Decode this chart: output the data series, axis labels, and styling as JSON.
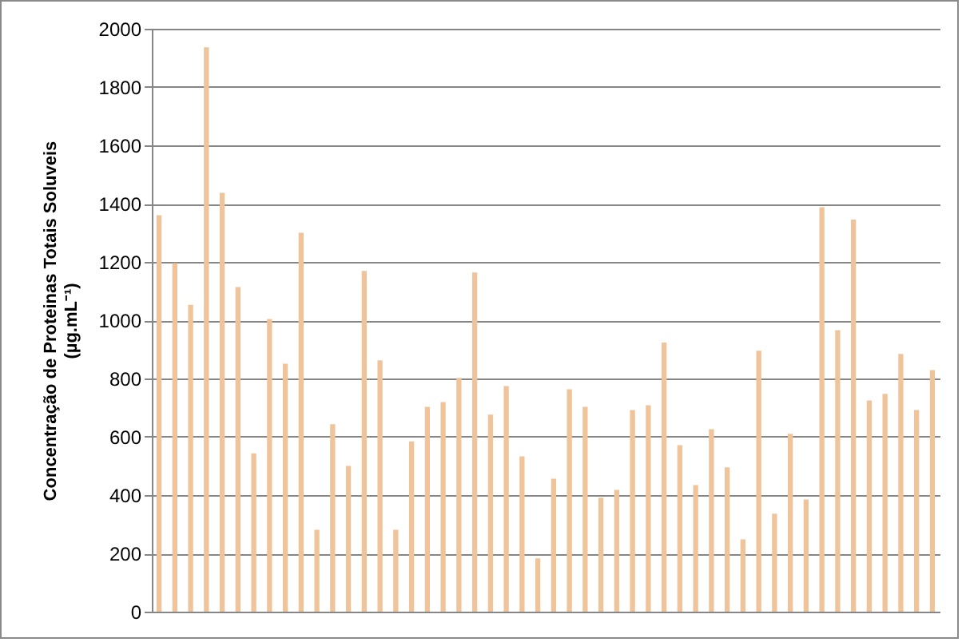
{
  "chart_data": {
    "type": "bar",
    "ylabel": "Concentração de Proteinas Totais Soluveis\n(µg.mL⁻¹)",
    "categories": [
      null,
      null,
      null,
      null,
      null,
      null,
      null,
      null,
      null,
      null,
      null,
      null,
      null,
      null,
      null,
      null,
      null,
      null,
      null,
      null,
      null,
      null,
      null,
      null,
      null,
      null,
      null,
      null,
      null,
      null,
      null,
      null,
      null,
      null,
      null,
      null,
      null,
      null,
      null,
      null,
      null,
      null,
      null,
      null,
      null,
      null,
      null,
      null,
      null,
      null
    ],
    "series": [
      {
        "color": "#f0c49a",
        "values": [
          1360,
          1196,
          1053,
          1936,
          1437,
          1114,
          543,
          1004,
          851,
          1300,
          281,
          643,
          500,
          1169,
          862,
          281,
          584,
          703,
          719,
          802,
          1164,
          676,
          774,
          533,
          183,
          456,
          763,
          703,
          391,
          418,
          692,
          708,
          923,
          571,
          434,
          626,
          495,
          248,
          895,
          336,
          610,
          385,
          1388,
          966,
          1345,
          725,
          747,
          884,
          692,
          829
        ]
      }
    ],
    "ylim": [
      0,
      2000
    ],
    "yticks": [
      0,
      200,
      400,
      600,
      800,
      1000,
      1200,
      1400,
      1600,
      1800,
      2000
    ],
    "grid": "y",
    "tick_labels": "y"
  }
}
